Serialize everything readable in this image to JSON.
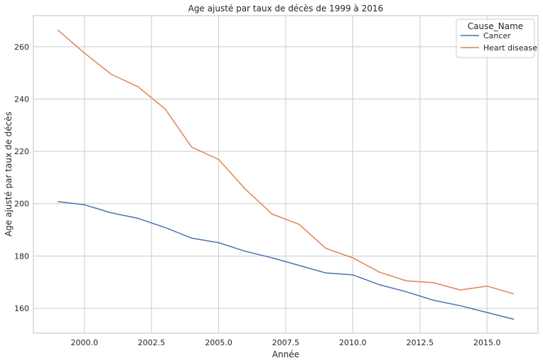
{
  "chart_data": {
    "type": "line",
    "title": "Age ajusté par taux de décès de 1999 à 2016",
    "xlabel": "Année",
    "ylabel": "Age ajusté par taux de décès",
    "xlim": [
      1998.1,
      2016.9
    ],
    "ylim": [
      150.5,
      271.9
    ],
    "x_ticks": [
      2000,
      2002.5,
      2005,
      2007.5,
      2010,
      2012.5,
      2015
    ],
    "x_tick_labels": [
      "2000.0",
      "2002.5",
      "2005.0",
      "2007.5",
      "2010.0",
      "2012.5",
      "2015.0"
    ],
    "y_ticks": [
      160,
      180,
      200,
      220,
      240,
      260
    ],
    "y_tick_labels": [
      "160",
      "180",
      "200",
      "220",
      "240",
      "260"
    ],
    "grid": true,
    "legend": {
      "title": "Cause_Name",
      "placement": "top-right"
    },
    "x": [
      1999,
      2000,
      2001,
      2002,
      2003,
      2004,
      2005,
      2006,
      2007,
      2008,
      2009,
      2010,
      2011,
      2012,
      2013,
      2014,
      2015,
      2016
    ],
    "series": [
      {
        "name": "Cancer",
        "color": "#4c72b0",
        "values": [
          200.8,
          199.6,
          196.5,
          194.4,
          190.9,
          186.8,
          185.1,
          181.8,
          179.3,
          176.4,
          173.5,
          172.8,
          169.0,
          166.3,
          163.1,
          161.0,
          158.4,
          155.8
        ]
      },
      {
        "name": "Heart disease",
        "color": "#dd8452",
        "values": [
          266.5,
          257.6,
          249.5,
          244.7,
          236.3,
          221.6,
          216.9,
          205.5,
          196.0,
          192.1,
          182.9,
          179.3,
          173.8,
          170.5,
          169.8,
          167.0,
          168.5,
          165.5
        ]
      }
    ]
  }
}
